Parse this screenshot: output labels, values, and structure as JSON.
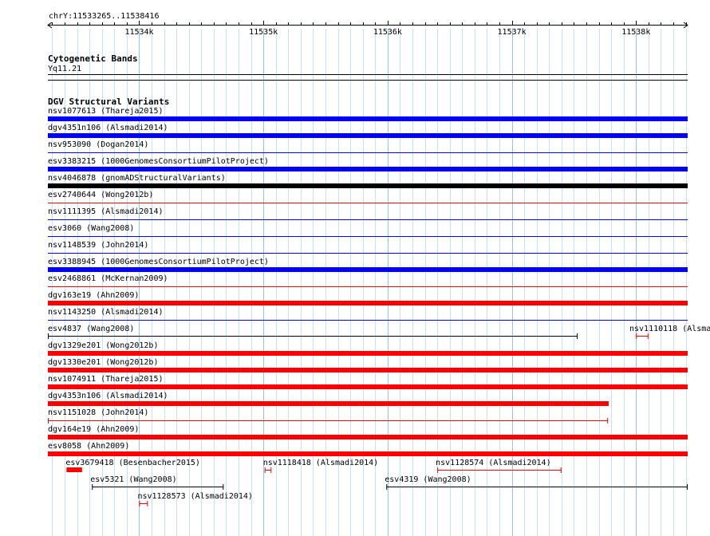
{
  "ruler": {
    "region": "chrY:11533265..11538416",
    "start": 11533265,
    "end": 11538416,
    "ticks": [
      {
        "pos": 11534000,
        "label": "11534k"
      },
      {
        "pos": 11535000,
        "label": "11535k"
      },
      {
        "pos": 11536000,
        "label": "11536k"
      },
      {
        "pos": 11537000,
        "label": "11537k"
      },
      {
        "pos": 11538000,
        "label": "11538k"
      }
    ]
  },
  "cytobands": {
    "title": "Cytogenetic Bands",
    "band": "Yq11.21"
  },
  "dgv": {
    "title": "DGV Structural Variants",
    "colors": {
      "gain": "#0000ff",
      "loss": "#ff0000",
      "complex": "#000000",
      "other": "#000000"
    },
    "full_width_features": [
      {
        "label": "nsv1077613 (Thareja2015)",
        "color": "#0000ff",
        "style": "thick"
      },
      {
        "label": "dgv4351n106 (Alsmadi2014)",
        "color": "#0000ff",
        "style": "thick"
      },
      {
        "label": "nsv953090 (Dogan2014)",
        "color": "#0000ff",
        "style": "thin"
      },
      {
        "label": "esv3383215 (1000GenomesConsortiumPilotProject)",
        "color": "#0000ff",
        "style": "thick"
      },
      {
        "label": "nsv4046878 (gnomADStructuralVariants)",
        "color": "#000000",
        "style": "thick"
      },
      {
        "label": "esv2740644 (Wong2012b)",
        "color": "#ff0000",
        "style": "thin"
      },
      {
        "label": "nsv1111395 (Alsmadi2014)",
        "color": "#0000ff",
        "style": "thin"
      },
      {
        "label": "esv3060 (Wang2008)",
        "color": "#0000ff",
        "style": "thin"
      },
      {
        "label": "nsv1148539 (John2014)",
        "color": "#0000ff",
        "style": "thin"
      },
      {
        "label": "esv3388945 (1000GenomesConsortiumPilotProject)",
        "color": "#0000ff",
        "style": "thick"
      },
      {
        "label": "esv2468861 (McKernan2009)",
        "color": "#ff0000",
        "style": "thin"
      },
      {
        "label": "dgv163e19 (Ahn2009)",
        "color": "#ff0000",
        "style": "thick"
      },
      {
        "label": "nsv1143250 (Alsmadi2014)",
        "color": "#0000ff",
        "style": "thin"
      }
    ],
    "row_esv4837": {
      "left": {
        "label": "esv4837 (Wang2008)",
        "color": "#000000",
        "start": 11533265,
        "end": 11537530
      },
      "right": {
        "label": "nsv1110118 (Alsma",
        "color": "#ff0000",
        "start": 11538000,
        "end": 11538100
      }
    },
    "full_width_features_2": [
      {
        "label": "dgv1329e201 (Wong2012b)",
        "color": "#ff0000",
        "style": "thick",
        "end": 11538416
      },
      {
        "label": "dgv1330e201 (Wong2012b)",
        "color": "#ff0000",
        "style": "thick",
        "end": 11538416
      },
      {
        "label": "nsv1074911 (Thareja2015)",
        "color": "#ff0000",
        "style": "thick",
        "end": 11538416
      },
      {
        "label": "dgv4353n106 (Alsmadi2014)",
        "color": "#ff0000",
        "style": "thick",
        "end": 11537780
      },
      {
        "label": "nsv1151028 (John2014)",
        "color": "#ff0000",
        "style": "thin",
        "end": 11537775
      },
      {
        "label": "dgv164e19 (Ahn2009)",
        "color": "#ff0000",
        "style": "thick",
        "end": 11538416
      },
      {
        "label": "esv8058 (Ahn2009)",
        "color": "#ff0000",
        "style": "thick",
        "end": 11538416
      }
    ],
    "packed": [
      {
        "label": "esv3679418 (Besenbacher2015)",
        "color": "#ff0000",
        "style": "thick",
        "start": 11533415,
        "end": 11533540,
        "row": 0
      },
      {
        "label": "nsv1118418 (Alsmadi2014)",
        "color": "#ff0000",
        "style": "thin",
        "start": 11535010,
        "end": 11535065,
        "row": 0
      },
      {
        "label": "nsv1128574 (Alsmadi2014)",
        "color": "#ff0000",
        "style": "thin",
        "start": 11536400,
        "end": 11537400,
        "row": 0
      },
      {
        "label": "esv5321 (Wang2008)",
        "color": "#000000",
        "style": "thin",
        "start": 11533620,
        "end": 11534680,
        "row": 1
      },
      {
        "label": "esv4319 (Wang2008)",
        "color": "#000000",
        "style": "thin",
        "start": 11535990,
        "end": 11538416,
        "row": 1
      },
      {
        "label": "nsv1128573 (Alsmadi2014)",
        "color": "#ff0000",
        "style": "thin",
        "start": 11534000,
        "end": 11534070,
        "row": 2
      }
    ]
  }
}
